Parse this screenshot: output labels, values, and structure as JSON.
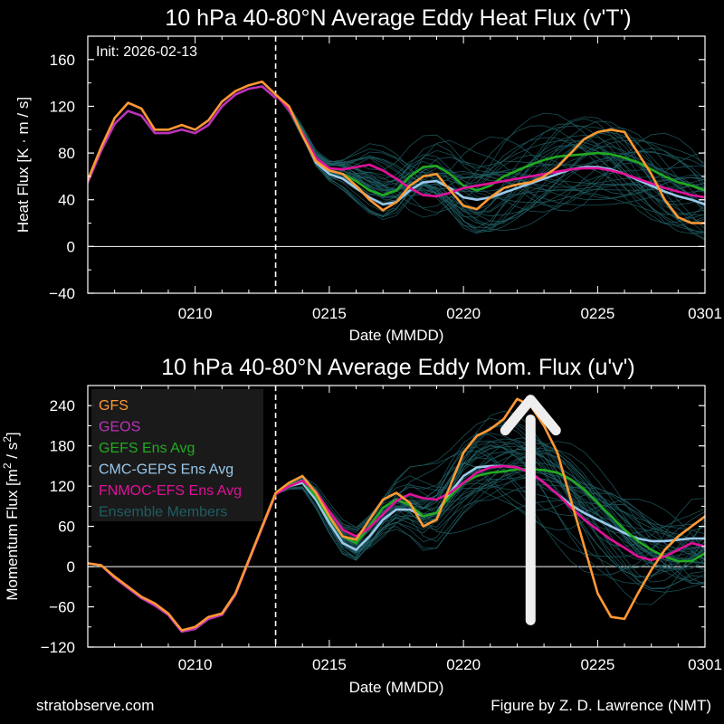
{
  "footer": {
    "left": "stratobserve.com",
    "right": "Figure by Z. D. Lawrence (NMT)"
  },
  "colors": {
    "background": "#000000",
    "GFS": "#ff9933",
    "GEOS": "#bb33bb",
    "GEFS": "#22aa22",
    "CMC": "#99c8ea",
    "FNMOC": "#e0119a",
    "members": "#1f5d63"
  },
  "chart_data": [
    {
      "type": "line",
      "title": "10 hPa  40-80°N  Average Eddy Heat Flux (v'T')",
      "ylabel_main": "Heat Flux  [K · m / s]",
      "xlabel": "Date (MMDD)",
      "annotation": "Init: 2026-02-13",
      "x_unit": "day offset from Feb 6 (x = 0 is 0206, 5 = 0211, 23 = 0301)",
      "xlim": [
        0,
        23
      ],
      "ylim": [
        -40,
        180
      ],
      "yticks": [
        -40,
        0,
        40,
        80,
        120,
        160
      ],
      "xticks": [
        {
          "x": 4,
          "label": "0210"
        },
        {
          "x": 9,
          "label": "0215"
        },
        {
          "x": 14,
          "label": "0220"
        },
        {
          "x": 19,
          "label": "0225"
        },
        {
          "x": 23,
          "label": "0301"
        }
      ],
      "zero_line": true,
      "init_line_x": 7,
      "series": [
        {
          "name": "GFS",
          "color": "#ff9933",
          "x": [
            0,
            0.5,
            1,
            1.5,
            2,
            2.5,
            3,
            3.5,
            4,
            4.5,
            5,
            5.5,
            6,
            6.5,
            7,
            7.5,
            8,
            8.5,
            9,
            9.5,
            10,
            10.5,
            11,
            11.5,
            12,
            12.5,
            13,
            13.5,
            14,
            14.5,
            15,
            15.5,
            16,
            16.5,
            17,
            17.5,
            18,
            18.5,
            19,
            19.5,
            20,
            20.5,
            21,
            21.5,
            22,
            22.5,
            23
          ],
          "values": [
            57,
            85,
            110,
            123,
            118,
            100,
            100,
            104,
            100,
            108,
            124,
            133,
            138,
            141,
            130,
            120,
            95,
            73,
            65,
            62,
            52,
            40,
            31,
            38,
            52,
            60,
            62,
            48,
            35,
            32,
            42,
            50,
            53,
            55,
            60,
            68,
            80,
            92,
            98,
            100,
            98,
            80,
            62,
            40,
            25,
            20,
            20
          ]
        },
        {
          "name": "GEOS",
          "color": "#bb33bb",
          "x": [
            0,
            0.5,
            1,
            1.5,
            2,
            2.5,
            3,
            3.5,
            4,
            4.5,
            5,
            5.5,
            6,
            6.5,
            7
          ],
          "values": [
            55,
            82,
            105,
            116,
            112,
            97,
            97,
            100,
            97,
            104,
            120,
            130,
            135,
            137,
            127
          ]
        },
        {
          "name": "GEFS Ens Avg",
          "color": "#22aa22",
          "x": [
            7,
            7.5,
            8,
            8.5,
            9,
            9.5,
            10,
            10.5,
            11,
            11.5,
            12,
            12.5,
            13,
            13.5,
            14,
            14.5,
            15,
            15.5,
            16,
            16.5,
            17,
            17.5,
            18,
            18.5,
            19,
            19.5,
            20,
            20.5,
            21,
            21.5,
            22,
            22.5,
            23
          ],
          "values": [
            130,
            118,
            98,
            75,
            65,
            62,
            56,
            48,
            44,
            48,
            60,
            68,
            69,
            62,
            52,
            48,
            52,
            60,
            65,
            70,
            74,
            77,
            78,
            79,
            80,
            79,
            76,
            72,
            66,
            60,
            55,
            52,
            48
          ]
        },
        {
          "name": "CMC-GEPS Ens Avg",
          "color": "#99c8ea",
          "x": [
            7,
            7.5,
            8,
            8.5,
            9,
            9.5,
            10,
            10.5,
            11,
            11.5,
            12,
            12.5,
            13,
            13.5,
            14,
            14.5,
            15,
            15.5,
            16,
            16.5,
            17,
            17.5,
            18,
            18.5,
            19,
            19.5,
            20,
            20.5,
            21,
            21.5,
            22,
            22.5,
            23
          ],
          "values": [
            130,
            118,
            96,
            72,
            62,
            58,
            50,
            42,
            36,
            38,
            48,
            55,
            56,
            50,
            42,
            40,
            42,
            46,
            50,
            54,
            58,
            62,
            66,
            68,
            68,
            66,
            62,
            57,
            52,
            47,
            43,
            40,
            36
          ]
        },
        {
          "name": "FNMOC-EFS Ens Avg",
          "color": "#e0119a",
          "x": [
            7,
            7.5,
            8,
            8.5,
            9,
            9.5,
            10,
            10.5,
            11,
            11.5,
            12,
            12.5,
            13,
            13.5,
            14,
            14.5,
            15,
            15.5,
            16,
            16.5,
            17,
            17.5,
            18,
            18.5,
            19,
            19.5,
            20,
            20.5,
            21,
            21.5,
            22,
            22.5,
            23
          ],
          "values": [
            130,
            117,
            97,
            76,
            67,
            66,
            68,
            70,
            65,
            58,
            50,
            44,
            43,
            46,
            50,
            52,
            54,
            56,
            58,
            60,
            62,
            64,
            66,
            67,
            67,
            65,
            62,
            58,
            54,
            50,
            47,
            44,
            42
          ]
        }
      ]
    },
    {
      "type": "line",
      "title": "10 hPa  40-80°N  Average Eddy Mom. Flux (u'v')",
      "ylabel_main": "Momentum Flux  [m",
      "ylabel_sup1": "2",
      "ylabel_mid": " / s",
      "ylabel_sup2": "2",
      "ylabel_end": "]",
      "xlabel": "Date (MMDD)",
      "x_unit": "day offset from Feb 6 (x = 0 is 0206, 5 = 0211, 23 = 0301)",
      "xlim": [
        0,
        23
      ],
      "ylim": [
        -120,
        270
      ],
      "yticks": [
        -120,
        -60,
        0,
        60,
        120,
        180,
        240
      ],
      "xticks": [
        {
          "x": 4,
          "label": "0210"
        },
        {
          "x": 9,
          "label": "0215"
        },
        {
          "x": 14,
          "label": "0220"
        },
        {
          "x": 19,
          "label": "0225"
        },
        {
          "x": 23,
          "label": "0301"
        }
      ],
      "zero_line": true,
      "init_line_x": 7,
      "arrow": {
        "x": 16.5,
        "y_from": -80,
        "y_to": 230,
        "color": "#eeeeee"
      },
      "legend": {
        "position": "top-left",
        "entries": [
          "GFS",
          "GEOS",
          "GEFS Ens Avg",
          "CMC-GEPS Ens Avg",
          "FNMOC-EFS Ens Avg",
          "Ensemble Members"
        ]
      },
      "series": [
        {
          "name": "GFS",
          "color": "#ff9933",
          "x": [
            0,
            0.5,
            1,
            1.5,
            2,
            2.5,
            3,
            3.5,
            4,
            4.5,
            5,
            5.5,
            6,
            6.5,
            7,
            7.5,
            8,
            8.5,
            9,
            9.5,
            10,
            10.5,
            11,
            11.5,
            12,
            12.5,
            13,
            13.5,
            14,
            14.5,
            15,
            15.5,
            16,
            16.5,
            17,
            17.5,
            18,
            18.5,
            19,
            19.5,
            20,
            20.5,
            21,
            21.5,
            22,
            22.5,
            23
          ],
          "values": [
            5,
            2,
            -15,
            -30,
            -45,
            -55,
            -70,
            -95,
            -90,
            -75,
            -70,
            -40,
            10,
            60,
            110,
            125,
            135,
            110,
            75,
            45,
            40,
            70,
            100,
            110,
            95,
            60,
            70,
            120,
            170,
            195,
            205,
            220,
            250,
            240,
            210,
            170,
            100,
            30,
            -40,
            -75,
            -78,
            -40,
            -5,
            25,
            45,
            60,
            75
          ]
        },
        {
          "name": "GEOS",
          "color": "#bb33bb",
          "x": [
            0,
            0.5,
            1,
            1.5,
            2,
            2.5,
            3,
            3.5,
            4,
            4.5,
            5,
            5.5,
            6,
            6.5,
            7
          ],
          "values": [
            5,
            2,
            -17,
            -32,
            -47,
            -58,
            -72,
            -97,
            -93,
            -78,
            -72,
            -42,
            8,
            58,
            108
          ]
        },
        {
          "name": "GEFS Ens Avg",
          "color": "#22aa22",
          "x": [
            7,
            7.5,
            8,
            8.5,
            9,
            9.5,
            10,
            10.5,
            11,
            11.5,
            12,
            12.5,
            13,
            13.5,
            14,
            14.5,
            15,
            15.5,
            16,
            16.5,
            17,
            17.5,
            18,
            18.5,
            19,
            19.5,
            20,
            20.5,
            21,
            21.5,
            22,
            22.5,
            23
          ],
          "values": [
            108,
            122,
            128,
            105,
            72,
            45,
            35,
            60,
            88,
            100,
            92,
            75,
            80,
            105,
            125,
            135,
            140,
            142,
            145,
            145,
            144,
            140,
            130,
            115,
            95,
            75,
            55,
            38,
            25,
            15,
            8,
            8,
            20
          ]
        },
        {
          "name": "CMC-GEPS Ens Avg",
          "color": "#99c8ea",
          "x": [
            7,
            7.5,
            8,
            8.5,
            9,
            9.5,
            10,
            10.5,
            11,
            11.5,
            12,
            12.5,
            13,
            13.5,
            14,
            14.5,
            15,
            15.5,
            16,
            16.5,
            17,
            17.5,
            18,
            18.5,
            19,
            19.5,
            20,
            20.5,
            21,
            21.5,
            22,
            22.5,
            23
          ],
          "values": [
            108,
            120,
            125,
            100,
            65,
            35,
            25,
            45,
            70,
            85,
            85,
            75,
            80,
            110,
            135,
            148,
            150,
            150,
            148,
            140,
            125,
            108,
            92,
            80,
            70,
            60,
            50,
            42,
            38,
            38,
            40,
            42,
            42
          ]
        },
        {
          "name": "FNMOC-EFS Ens Avg",
          "color": "#e0119a",
          "x": [
            7,
            7.5,
            8,
            8.5,
            9,
            9.5,
            10,
            10.5,
            11,
            11.5,
            12,
            12.5,
            13,
            13.5,
            14,
            14.5,
            15,
            15.5,
            16,
            16.5,
            17,
            17.5,
            18,
            18.5,
            19,
            19.5,
            20,
            20.5,
            21,
            21.5,
            22,
            22.5,
            23
          ],
          "values": [
            108,
            120,
            128,
            112,
            82,
            55,
            45,
            58,
            78,
            98,
            108,
            102,
            100,
            110,
            125,
            140,
            148,
            150,
            148,
            140,
            125,
            108,
            88,
            70,
            55,
            40,
            28,
            15,
            10,
            15,
            25,
            35,
            30
          ]
        }
      ]
    }
  ]
}
